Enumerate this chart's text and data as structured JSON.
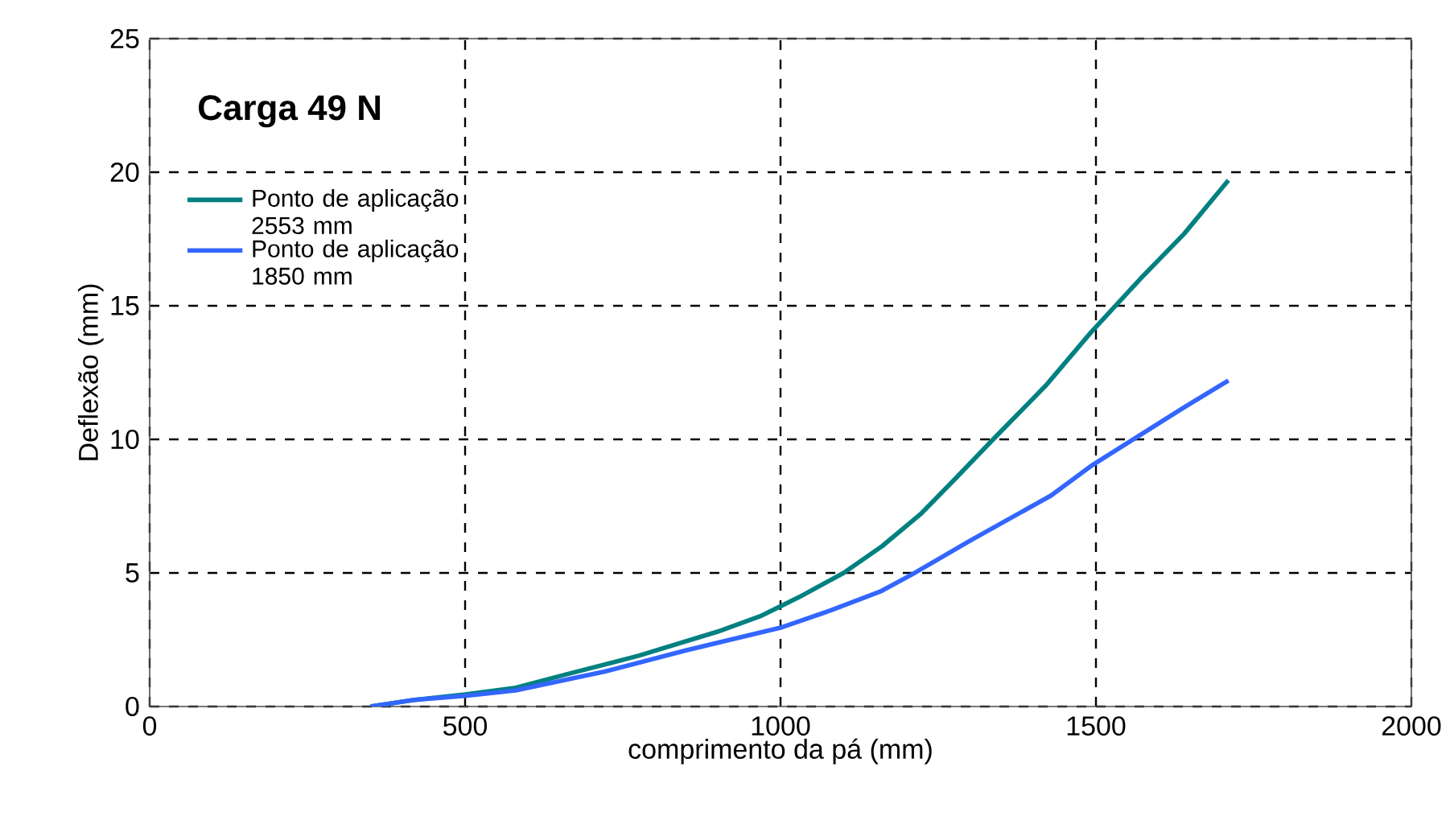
{
  "chart_data": {
    "type": "line",
    "xlabel": "comprimento da pá (mm)",
    "ylabel": "Deflexão (mm)",
    "annotations": [
      "Carga 49 N"
    ],
    "xlim": [
      0,
      2000
    ],
    "xticks": [
      0,
      500,
      1000,
      1500,
      2000
    ],
    "ylim": [
      0,
      25
    ],
    "yticks": [
      0,
      5,
      10,
      15,
      20,
      25
    ],
    "grid": true,
    "legend": "top left",
    "marker": "none",
    "line_style": "solid",
    "series": [
      {
        "name": "Ponto de aplicação 2553 mm",
        "color": "#008080",
        "x": [
          350,
          420,
          500,
          580,
          660,
          775,
          900,
          970,
          1030,
          1100,
          1161,
          1222,
          1280,
          1337,
          1420,
          1492,
          1570,
          1640,
          1710
        ],
        "values": [
          0,
          0.25,
          0.45,
          0.7,
          1.2,
          1.9,
          2.8,
          3.4,
          4.1,
          5.0,
          6.0,
          7.2,
          8.6,
          10.0,
          12.0,
          14.0,
          16.0,
          17.7,
          19.7
        ]
      },
      {
        "name": "Ponto de aplicação 1850 mm",
        "color": "#3366ff",
        "x": [
          350,
          420,
          500,
          580,
          720,
          850,
          1000,
          1080,
          1158,
          1209,
          1300,
          1429,
          1492,
          1566,
          1640,
          1710
        ],
        "values": [
          0,
          0.25,
          0.4,
          0.6,
          1.3,
          2.1,
          2.95,
          3.6,
          4.3,
          4.95,
          6.2,
          7.9,
          9.0,
          10.1,
          11.2,
          12.2
        ]
      }
    ]
  }
}
